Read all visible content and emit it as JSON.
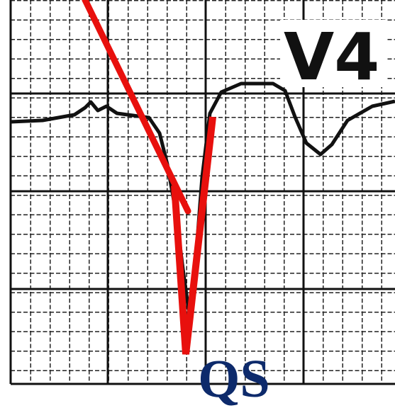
{
  "lead_label": "V4",
  "annotation": "QS"
}
